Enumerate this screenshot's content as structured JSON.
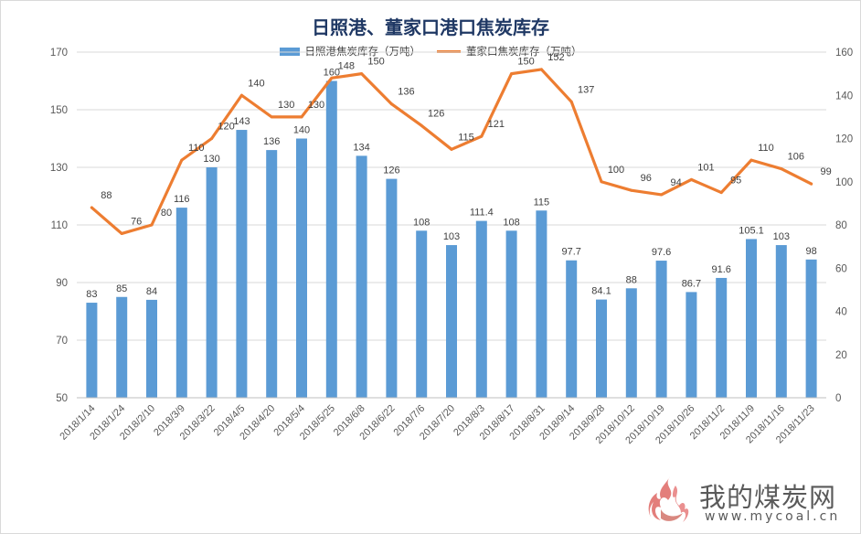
{
  "chart_data": {
    "type": "bar+line",
    "title": "日照港、董家口港口焦炭库存",
    "categories": [
      "2018/1/14",
      "2018/1/24",
      "2018/2/10",
      "2018/3/9",
      "2018/3/22",
      "2018/4/5",
      "2018/4/20",
      "2018/5/4",
      "2018/5/25",
      "2018/6/8",
      "2018/6/22",
      "2018/7/6",
      "2018/7/20",
      "2018/8/3",
      "2018/8/17",
      "2018/8/31",
      "2018/9/14",
      "2018/9/28",
      "2018/10/12",
      "2018/10/19",
      "2018/10/26",
      "2018/11/2",
      "2018/11/9",
      "2018/11/16",
      "2018/11/23"
    ],
    "series": [
      {
        "name": "日照港焦炭库存（万吨）",
        "type": "bar",
        "axis": "left",
        "color": "#5b9bd5",
        "values": [
          83,
          85,
          84,
          116,
          130,
          143,
          136,
          140,
          160,
          134,
          126,
          108,
          103,
          111.4,
          108,
          115,
          97.7,
          84.1,
          88,
          97.6,
          86.7,
          91.6,
          105.1,
          103,
          98
        ],
        "labels": [
          "83",
          "85",
          "84",
          "116",
          "130",
          "143",
          "136",
          "140",
          "160",
          "134",
          "126",
          "108",
          "103",
          "111.4",
          "108",
          "115",
          "97.7",
          "84.1",
          "88",
          "97.6",
          "86.7",
          "91.6",
          "105.1",
          "103",
          "98"
        ]
      },
      {
        "name": "董家口焦炭库存（万吨）",
        "type": "line",
        "axis": "right",
        "color": "#ed7d31",
        "values": [
          88,
          76,
          80,
          110,
          120,
          140,
          130,
          130,
          148,
          150,
          136,
          126,
          115,
          121,
          150,
          152,
          137,
          100,
          96,
          94,
          101,
          95,
          110,
          106,
          99
        ]
      }
    ],
    "y_left": {
      "min": 50,
      "max": 170,
      "ticks": [
        "50",
        "70",
        "90",
        "110",
        "130",
        "150",
        "170"
      ]
    },
    "y_right": {
      "min": 0,
      "max": 160,
      "ticks": [
        "0",
        "20",
        "40",
        "60",
        "80",
        "100",
        "120",
        "140",
        "160"
      ]
    },
    "grid": true,
    "legend_position": "top"
  },
  "watermark": {
    "name": "我的煤炭网",
    "url": "www.mycoal.cn"
  }
}
